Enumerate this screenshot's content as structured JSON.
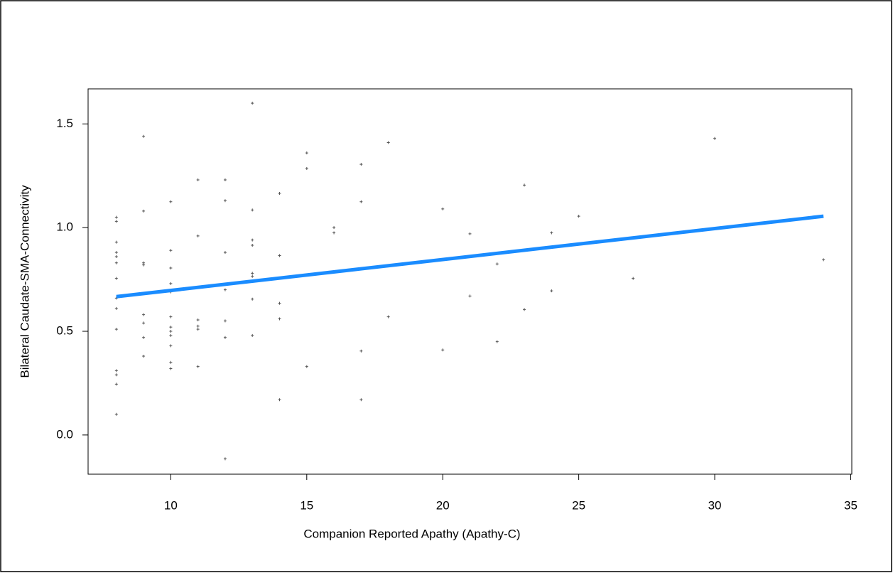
{
  "chart_data": {
    "type": "scatter",
    "x_label": "Companion Reported Apathy (Apathy-C)",
    "y_label": "Bilateral Caudate-SMA-Connectivity",
    "xlim": [
      6.96,
      35.04
    ],
    "ylim": [
      -0.189,
      1.669
    ],
    "xticks": [
      10,
      15,
      20,
      25,
      30,
      35
    ],
    "yticks": [
      {
        "value": 0,
        "label": "0.0"
      },
      {
        "value": 0.5,
        "label": "0.5"
      },
      {
        "value": 1,
        "label": "1.0"
      },
      {
        "value": 1.5,
        "label": "1.5"
      }
    ],
    "grid": false,
    "series": [
      {
        "color": "#555555",
        "x": [
          8,
          8,
          8,
          8,
          8,
          8,
          8,
          8,
          8,
          8,
          8,
          8,
          8,
          8,
          9,
          9,
          9,
          9,
          9,
          9,
          9,
          9,
          10,
          10,
          10,
          10,
          10,
          10,
          10,
          10,
          10,
          10,
          10,
          10,
          11,
          11,
          11,
          11,
          11,
          11,
          12,
          12,
          12,
          12,
          12,
          12,
          12,
          13,
          13,
          13,
          13,
          13,
          13,
          13,
          13,
          14,
          14,
          14,
          14,
          14,
          15,
          15,
          15,
          16,
          16,
          17,
          17,
          17,
          17,
          18,
          18,
          20,
          20,
          21,
          21,
          22,
          22,
          23,
          23,
          24,
          24,
          25,
          27,
          30,
          34
        ],
        "values": [
          1.05,
          1.03,
          0.93,
          0.88,
          0.86,
          0.83,
          0.755,
          0.66,
          0.61,
          0.51,
          0.31,
          0.29,
          0.245,
          0.1,
          1.44,
          1.08,
          0.83,
          0.82,
          0.58,
          0.54,
          0.47,
          0.38,
          1.125,
          0.89,
          0.805,
          0.73,
          0.69,
          0.57,
          0.52,
          0.5,
          0.48,
          0.43,
          0.35,
          0.32,
          1.23,
          0.96,
          0.555,
          0.525,
          0.51,
          0.33,
          1.23,
          1.13,
          0.88,
          0.7,
          0.55,
          0.47,
          -0.115,
          1.6,
          1.085,
          0.94,
          0.915,
          0.78,
          0.765,
          0.655,
          0.48,
          1.165,
          0.865,
          0.635,
          0.56,
          0.17,
          1.36,
          1.285,
          0.33,
          1.0,
          0.975,
          1.305,
          1.125,
          0.405,
          0.17,
          1.41,
          0.57,
          1.09,
          0.41,
          0.97,
          0.67,
          0.825,
          0.45,
          1.205,
          0.605,
          0.975,
          0.695,
          1.055,
          0.755,
          1.43,
          0.845
        ]
      }
    ],
    "fit_line": {
      "color": "#1a8cff",
      "x": [
        8,
        34
      ],
      "values": [
        0.667,
        1.055
      ]
    }
  }
}
